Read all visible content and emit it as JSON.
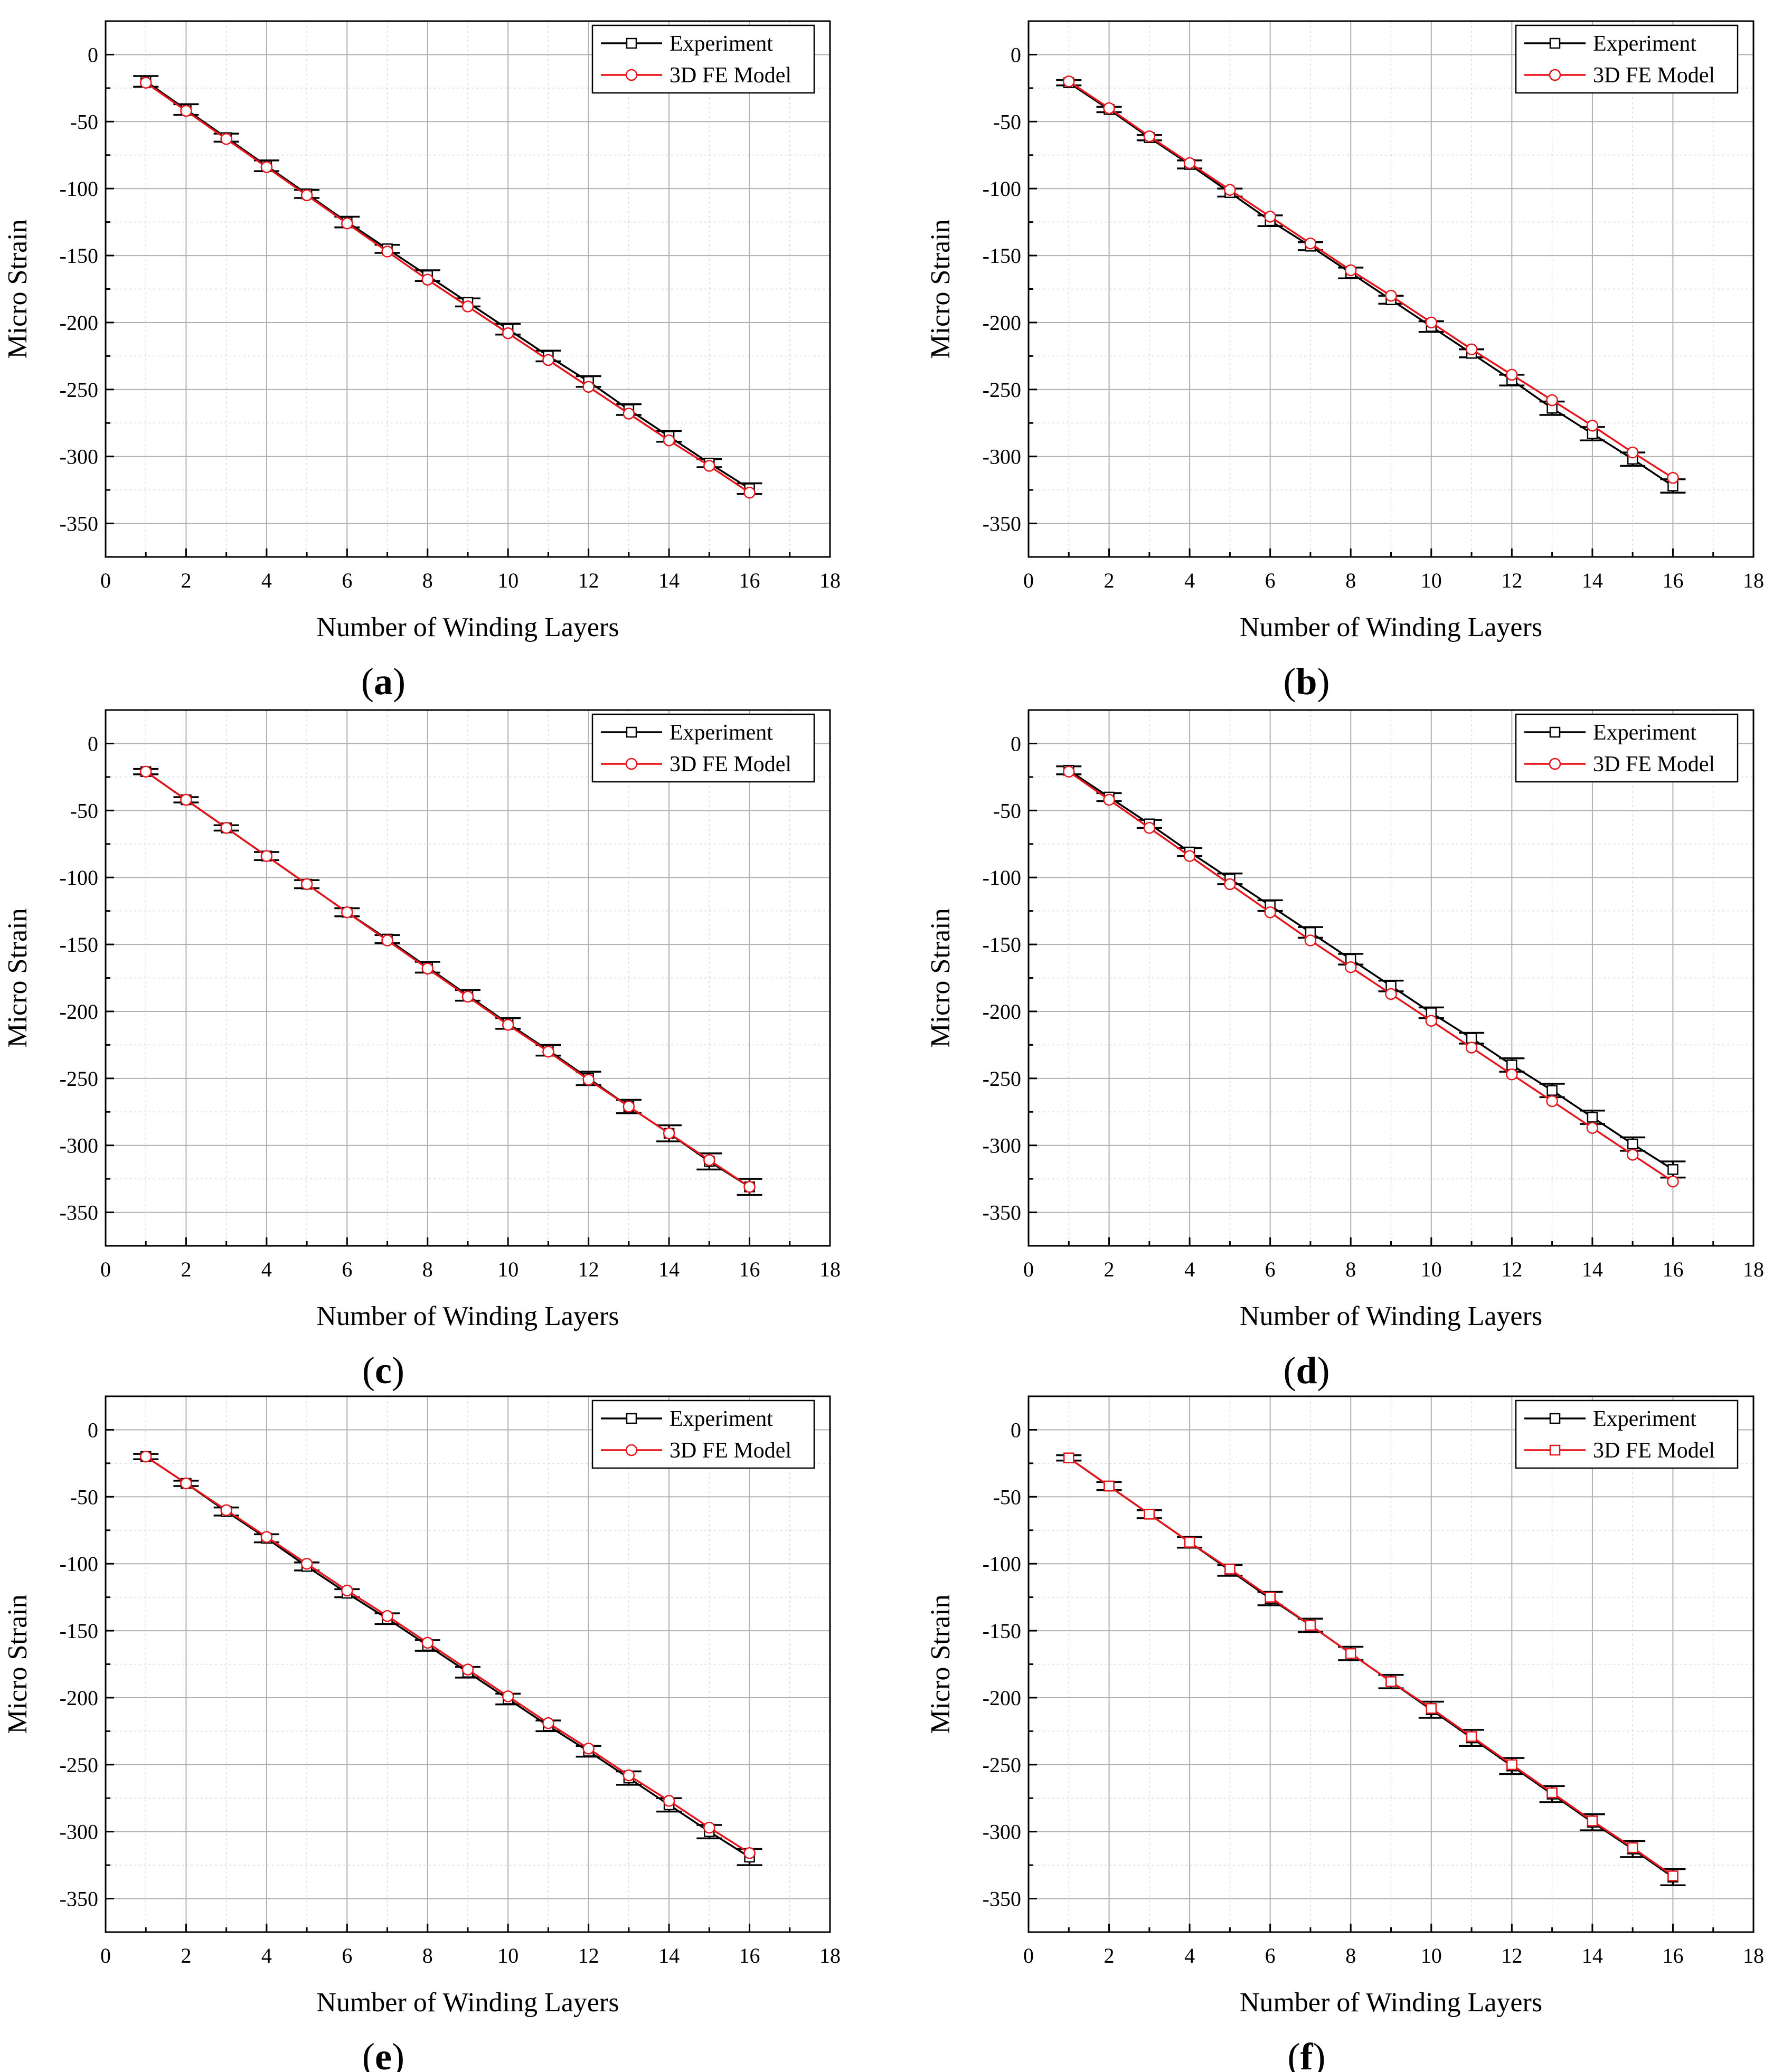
{
  "figure": {
    "panels": [
      "(a)",
      "(b)",
      "(c)",
      "(d)",
      "(e)",
      "(f)"
    ]
  },
  "colors": {
    "experiment": "#000000",
    "model": "#e8141b",
    "major_grid": "#b0b0b0",
    "minor_grid": "#dadada"
  },
  "chart_data": [
    {
      "type": "line",
      "panel_label": "a",
      "xlabel": "Number of Winding Layers",
      "ylabel": "Micro Strain",
      "xlim": [
        0,
        18
      ],
      "ylim": [
        -375,
        25
      ],
      "xticks": [
        0,
        2,
        4,
        6,
        8,
        10,
        12,
        14,
        16,
        18
      ],
      "yticks": [
        0,
        -50,
        -100,
        -150,
        -200,
        -250,
        -300,
        -350
      ],
      "legend_position": "top-right",
      "series": [
        {
          "name": "Experiment",
          "marker": "square",
          "x": [
            1,
            2,
            3,
            4,
            5,
            6,
            7,
            8,
            9,
            10,
            11,
            12,
            13,
            14,
            15,
            16
          ],
          "y": [
            -20,
            -41,
            -62,
            -83,
            -104,
            -125,
            -145,
            -165,
            -185,
            -205,
            -225,
            -244,
            -265,
            -285,
            -305,
            -324
          ],
          "err": [
            4,
            4,
            3,
            4,
            3,
            4,
            3,
            4,
            3,
            4,
            4,
            4,
            4,
            4,
            3,
            4
          ]
        },
        {
          "name": "3D FE Model",
          "marker": "circle",
          "x": [
            1,
            2,
            3,
            4,
            5,
            6,
            7,
            8,
            9,
            10,
            11,
            12,
            13,
            14,
            15,
            16
          ],
          "y": [
            -21,
            -42,
            -63,
            -84,
            -105,
            -126,
            -147,
            -168,
            -188,
            -208,
            -228,
            -248,
            -268,
            -288,
            -307,
            -327
          ]
        }
      ]
    },
    {
      "type": "line",
      "panel_label": "b",
      "xlabel": "Number of Winding Layers",
      "ylabel": "Micro Strain",
      "xlim": [
        0,
        18
      ],
      "ylim": [
        -375,
        25
      ],
      "xticks": [
        0,
        2,
        4,
        6,
        8,
        10,
        12,
        14,
        16,
        18
      ],
      "yticks": [
        0,
        -50,
        -100,
        -150,
        -200,
        -250,
        -300,
        -350
      ],
      "legend_position": "top-right",
      "series": [
        {
          "name": "Experiment",
          "marker": "square",
          "x": [
            1,
            2,
            3,
            4,
            5,
            6,
            7,
            8,
            9,
            10,
            11,
            12,
            13,
            14,
            15,
            16
          ],
          "y": [
            -21,
            -41,
            -62,
            -82,
            -103,
            -124,
            -143,
            -163,
            -183,
            -203,
            -223,
            -243,
            -264,
            -283,
            -302,
            -322
          ],
          "err": [
            2,
            2,
            2,
            3,
            3,
            4,
            3,
            4,
            3,
            4,
            3,
            4,
            5,
            5,
            5,
            5
          ]
        },
        {
          "name": "3D FE Model",
          "marker": "circle",
          "x": [
            1,
            2,
            3,
            4,
            5,
            6,
            7,
            8,
            9,
            10,
            11,
            12,
            13,
            14,
            15,
            16
          ],
          "y": [
            -20,
            -40,
            -61,
            -81,
            -101,
            -121,
            -141,
            -161,
            -180,
            -200,
            -220,
            -239,
            -258,
            -277,
            -297,
            -316
          ]
        }
      ]
    },
    {
      "type": "line",
      "panel_label": "c",
      "xlabel": "Number of Winding Layers",
      "ylabel": "Micro Strain",
      "xlim": [
        0,
        18
      ],
      "ylim": [
        -375,
        25
      ],
      "xticks": [
        0,
        2,
        4,
        6,
        8,
        10,
        12,
        14,
        16,
        18
      ],
      "yticks": [
        0,
        -50,
        -100,
        -150,
        -200,
        -250,
        -300,
        -350
      ],
      "legend_position": "top-right",
      "series": [
        {
          "name": "Experiment",
          "marker": "square",
          "x": [
            1,
            2,
            3,
            4,
            5,
            6,
            7,
            8,
            9,
            10,
            11,
            12,
            13,
            14,
            15,
            16
          ],
          "y": [
            -21,
            -42,
            -63,
            -84,
            -105,
            -126,
            -146,
            -167,
            -188,
            -209,
            -229,
            -250,
            -271,
            -291,
            -312,
            -331
          ],
          "err": [
            2,
            2,
            2,
            3,
            3,
            3,
            3,
            4,
            4,
            4,
            4,
            5,
            5,
            6,
            6,
            6
          ]
        },
        {
          "name": "3D FE Model",
          "marker": "circle",
          "x": [
            1,
            2,
            3,
            4,
            5,
            6,
            7,
            8,
            9,
            10,
            11,
            12,
            13,
            14,
            15,
            16
          ],
          "y": [
            -21,
            -42,
            -63,
            -84,
            -105,
            -126,
            -147,
            -168,
            -189,
            -210,
            -230,
            -251,
            -271,
            -291,
            -311,
            -331
          ]
        }
      ]
    },
    {
      "type": "line",
      "panel_label": "d",
      "xlabel": "Number of Winding Layers",
      "ylabel": "Micro Strain",
      "xlim": [
        0,
        18
      ],
      "ylim": [
        -375,
        25
      ],
      "xticks": [
        0,
        2,
        4,
        6,
        8,
        10,
        12,
        14,
        16,
        18
      ],
      "yticks": [
        0,
        -50,
        -100,
        -150,
        -200,
        -250,
        -300,
        -350
      ],
      "legend_position": "top-right",
      "series": [
        {
          "name": "Experiment",
          "marker": "square",
          "x": [
            1,
            2,
            3,
            4,
            5,
            6,
            7,
            8,
            9,
            10,
            11,
            12,
            13,
            14,
            15,
            16
          ],
          "y": [
            -20,
            -40,
            -60,
            -81,
            -101,
            -121,
            -141,
            -161,
            -181,
            -201,
            -220,
            -240,
            -259,
            -279,
            -299,
            -318
          ],
          "err": [
            3,
            3,
            3,
            3,
            4,
            4,
            4,
            4,
            4,
            4,
            4,
            5,
            5,
            5,
            5,
            6
          ]
        },
        {
          "name": "3D FE Model",
          "marker": "circle",
          "x": [
            1,
            2,
            3,
            4,
            5,
            6,
            7,
            8,
            9,
            10,
            11,
            12,
            13,
            14,
            15,
            16
          ],
          "y": [
            -21,
            -42,
            -63,
            -84,
            -105,
            -126,
            -147,
            -167,
            -187,
            -207,
            -227,
            -247,
            -267,
            -287,
            -307,
            -327
          ]
        }
      ]
    },
    {
      "type": "line",
      "panel_label": "e",
      "xlabel": "Number of  Winding Layers",
      "ylabel": "Micro Strain",
      "xlim": [
        0,
        18
      ],
      "ylim": [
        -375,
        25
      ],
      "xticks": [
        0,
        2,
        4,
        6,
        8,
        10,
        12,
        14,
        16,
        18
      ],
      "yticks": [
        0,
        -50,
        -100,
        -150,
        -200,
        -250,
        -300,
        -350
      ],
      "legend_position": "top-right",
      "series": [
        {
          "name": "Experiment",
          "marker": "square",
          "x": [
            1,
            2,
            3,
            4,
            5,
            6,
            7,
            8,
            9,
            10,
            11,
            12,
            13,
            14,
            15,
            16
          ],
          "y": [
            -20,
            -40,
            -61,
            -81,
            -102,
            -122,
            -141,
            -161,
            -181,
            -201,
            -221,
            -240,
            -260,
            -280,
            -300,
            -319
          ],
          "err": [
            2,
            2,
            3,
            3,
            3,
            3,
            4,
            4,
            4,
            4,
            4,
            4,
            5,
            5,
            5,
            6
          ]
        },
        {
          "name": "3D FE Model",
          "marker": "circle",
          "x": [
            1,
            2,
            3,
            4,
            5,
            6,
            7,
            8,
            9,
            10,
            11,
            12,
            13,
            14,
            15,
            16
          ],
          "y": [
            -20,
            -40,
            -60,
            -80,
            -100,
            -120,
            -139,
            -159,
            -179,
            -199,
            -219,
            -238,
            -258,
            -277,
            -297,
            -316
          ]
        }
      ]
    },
    {
      "type": "line",
      "panel_label": "f",
      "xlabel": "Number of Winding Layers",
      "ylabel": "Micro Strain",
      "xlim": [
        0,
        18
      ],
      "ylim": [
        -375,
        25
      ],
      "xticks": [
        0,
        2,
        4,
        6,
        8,
        10,
        12,
        14,
        16,
        18
      ],
      "yticks": [
        0,
        -50,
        -100,
        -150,
        -200,
        -250,
        -300,
        -350
      ],
      "legend_position": "top-right",
      "series": [
        {
          "name": "Experiment",
          "marker": "square",
          "x": [
            1,
            2,
            3,
            4,
            5,
            6,
            7,
            8,
            9,
            10,
            11,
            12,
            13,
            14,
            15,
            16
          ],
          "y": [
            -21,
            -42,
            -63,
            -84,
            -105,
            -126,
            -146,
            -167,
            -188,
            -209,
            -230,
            -251,
            -272,
            -293,
            -313,
            -334
          ],
          "err": [
            2,
            3,
            3,
            4,
            4,
            5,
            5,
            5,
            5,
            6,
            6,
            6,
            6,
            6,
            6,
            6
          ]
        },
        {
          "name": "3D FE Model",
          "marker": "square",
          "x": [
            1,
            2,
            3,
            4,
            5,
            6,
            7,
            8,
            9,
            10,
            11,
            12,
            13,
            14,
            15,
            16
          ],
          "y": [
            -21,
            -42,
            -63,
            -84,
            -104,
            -125,
            -146,
            -167,
            -188,
            -208,
            -229,
            -250,
            -271,
            -292,
            -312,
            -333
          ]
        }
      ]
    }
  ]
}
